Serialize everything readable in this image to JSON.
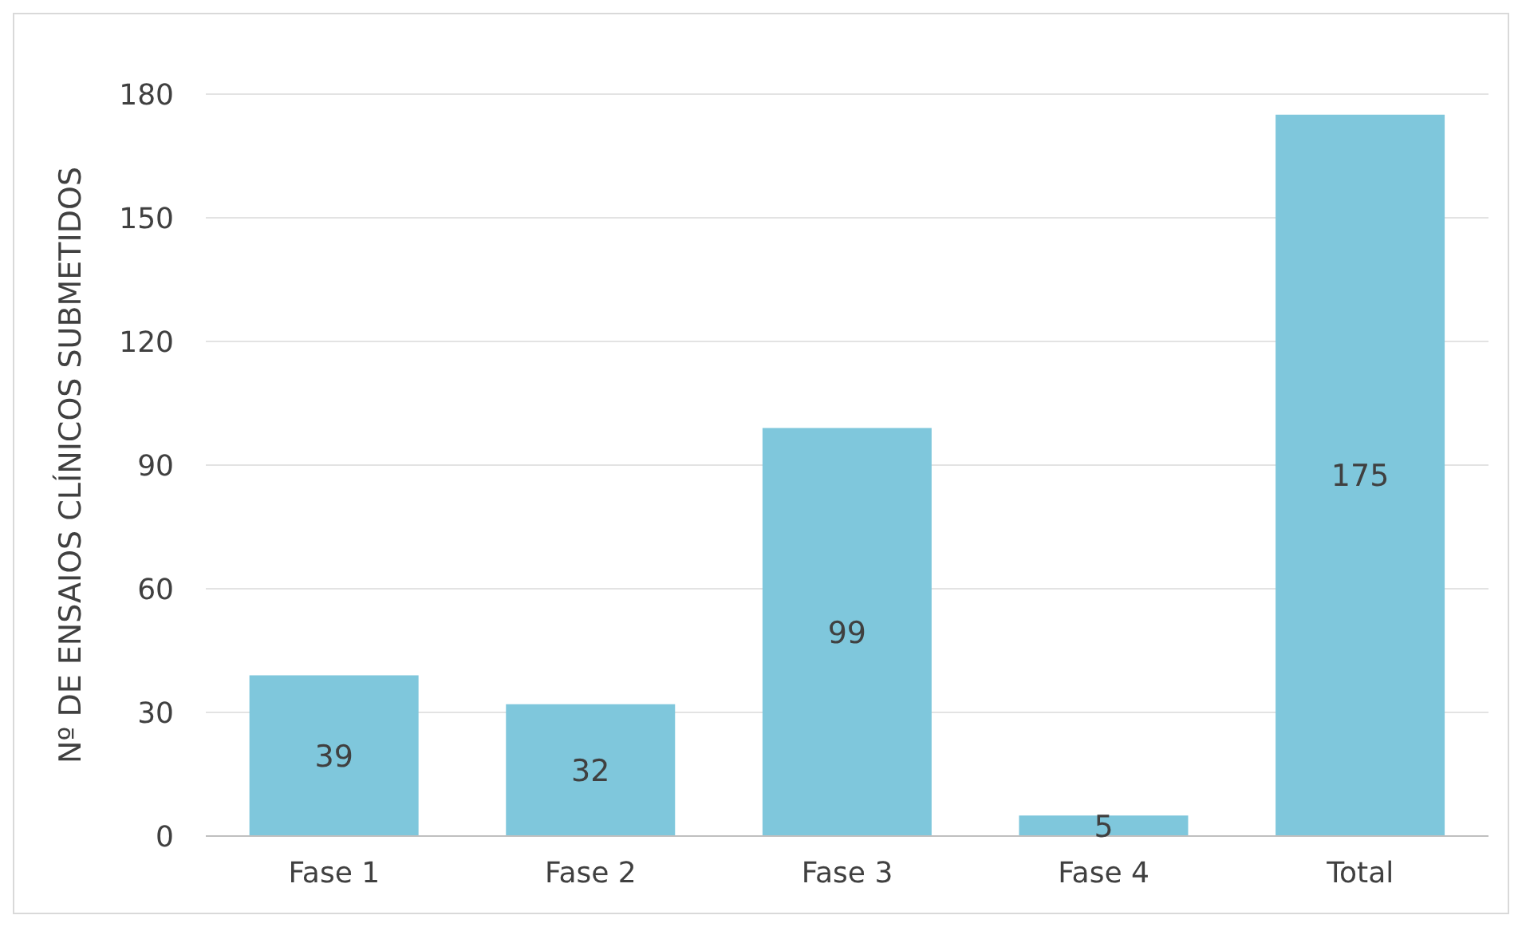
{
  "chart_data": {
    "type": "bar",
    "ylabel": "Nº DE ENSAIOS CLÍNICOS SUBMETIDOS",
    "categories": [
      "Fase 1",
      "Fase 2",
      "Fase 3",
      "Fase 4",
      "Total"
    ],
    "values": [
      39,
      32,
      99,
      5,
      175
    ],
    "color": "#7fc7dc",
    "ylim": [
      0,
      180
    ],
    "yticks": [
      0,
      30,
      60,
      90,
      120,
      150,
      180
    ],
    "grid": "y",
    "data_labels": true
  }
}
